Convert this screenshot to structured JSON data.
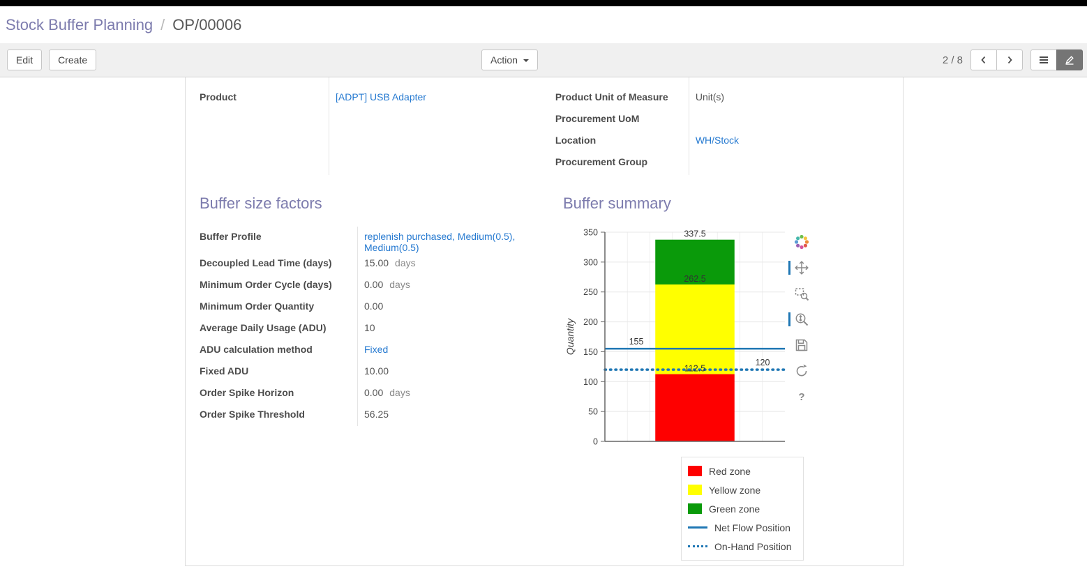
{
  "breadcrumb": {
    "parent": "Stock Buffer Planning",
    "separator": "/",
    "current": "OP/00006"
  },
  "toolbar": {
    "edit_label": "Edit",
    "create_label": "Create",
    "action_label": "Action",
    "pager": "2 / 8"
  },
  "form": {
    "left_fields": [
      {
        "label": "Product",
        "value": "[ADPT] USB Adapter",
        "link": true
      }
    ],
    "right_fields": [
      {
        "label": "Product Unit of Measure",
        "value": "Unit(s)"
      },
      {
        "label": "Procurement UoM",
        "value": ""
      },
      {
        "label": "Location",
        "value": "WH/Stock",
        "link": true
      },
      {
        "label": "Procurement Group",
        "value": ""
      }
    ],
    "sections": {
      "factors": {
        "title": "Buffer size factors",
        "fields": [
          {
            "label": "Buffer Profile",
            "value": "replenish purchased, Medium(0.5), Medium(0.5)",
            "link": true
          },
          {
            "label": "Decoupled Lead Time (days)",
            "value": "15.00",
            "suffix": "days"
          },
          {
            "label": "Minimum Order Cycle (days)",
            "value": "0.00",
            "suffix": "days"
          },
          {
            "label": "Minimum Order Quantity",
            "value": "0.00"
          },
          {
            "label": "Average Daily Usage (ADU)",
            "value": "10"
          },
          {
            "label": "ADU calculation method",
            "value": "Fixed",
            "link": true
          },
          {
            "label": "Fixed ADU",
            "value": "10.00"
          },
          {
            "label": "Order Spike Horizon",
            "value": "0.00",
            "suffix": "days"
          },
          {
            "label": "Order Spike Threshold",
            "value": "56.25"
          }
        ]
      },
      "summary": {
        "title": "Buffer summary"
      }
    }
  },
  "chart_toolbar": {
    "tools": [
      "bokeh-logo",
      "pan",
      "box-zoom",
      "wheel-zoom",
      "save",
      "reset",
      "help"
    ],
    "active_tools": [
      "pan",
      "wheel-zoom"
    ]
  },
  "chart_data": {
    "type": "bar",
    "title": "",
    "xlabel": "",
    "ylabel": "Quantity",
    "ylim": [
      0,
      350
    ],
    "yticks": [
      0,
      50,
      100,
      150,
      200,
      250,
      300,
      350
    ],
    "grid": true,
    "zones": [
      {
        "name": "Red zone",
        "from": 0,
        "to": 112.5,
        "color": "#fe0000"
      },
      {
        "name": "Yellow zone",
        "from": 112.5,
        "to": 262.5,
        "color": "#ffff00"
      },
      {
        "name": "Green zone",
        "from": 262.5,
        "to": 337.5,
        "color": "#0a9a0a"
      }
    ],
    "lines": [
      {
        "name": "Net Flow Position",
        "value": 155,
        "style": "solid",
        "color": "#1f77b4",
        "label_pos": "left"
      },
      {
        "name": "On-Hand Position",
        "value": 120,
        "style": "dotted",
        "color": "#1f77b4",
        "label_pos": "right"
      }
    ],
    "legend_position": "bottom-right"
  }
}
